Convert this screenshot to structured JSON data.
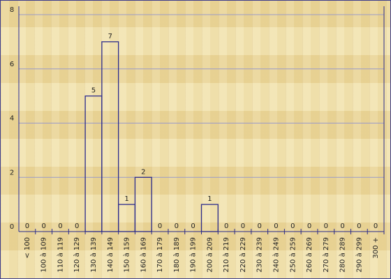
{
  "chart_data": {
    "type": "bar",
    "categories": [
      "< 100",
      "100 à 109",
      "110 à 119",
      "120 à 129",
      "130 à 139",
      "140 à 149",
      "150 à 159",
      "160 à 169",
      "170 à 179",
      "180 à 189",
      "190 à 199",
      "200 à 209",
      "210 à 219",
      "220 à 229",
      "230 à 239",
      "240 à 249",
      "250 à 259",
      "260 à 269",
      "270 à 279",
      "280 à 289",
      "290 à 299",
      "300 +"
    ],
    "values": [
      0,
      0,
      0,
      0,
      5,
      7,
      1,
      2,
      0,
      0,
      0,
      1,
      0,
      0,
      0,
      0,
      0,
      0,
      0,
      0,
      0,
      0
    ],
    "color": "#2b2b8c",
    "ylim": [
      0,
      8
    ],
    "yticks": [
      0,
      2,
      4,
      6,
      8
    ],
    "grid": true
  }
}
